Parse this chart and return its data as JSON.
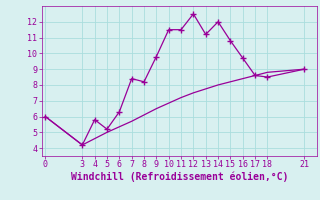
{
  "line1_x": [
    0,
    3,
    4,
    5,
    6,
    7,
    8,
    9,
    10,
    11,
    12,
    13,
    14,
    15,
    16,
    17,
    18,
    21
  ],
  "line1_y": [
    6.0,
    4.2,
    5.8,
    5.2,
    6.3,
    8.4,
    8.2,
    9.8,
    11.5,
    11.5,
    12.5,
    11.2,
    12.0,
    10.8,
    9.7,
    8.6,
    8.5,
    9.0
  ],
  "line2_x": [
    0,
    3,
    4,
    5,
    6,
    7,
    8,
    9,
    10,
    11,
    12,
    13,
    14,
    15,
    16,
    17,
    18,
    21
  ],
  "line2_y": [
    6.0,
    4.2,
    4.6,
    5.0,
    5.35,
    5.7,
    6.1,
    6.5,
    6.85,
    7.2,
    7.5,
    7.75,
    8.0,
    8.2,
    8.4,
    8.6,
    8.8,
    9.0
  ],
  "line_color": "#990099",
  "bg_color": "#d8f0f0",
  "grid_color": "#aadddd",
  "xlabel": "Windchill (Refroidissement éolien,°C)",
  "xlabel_color": "#990099",
  "ylabel_ticks": [
    4,
    5,
    6,
    7,
    8,
    9,
    10,
    11,
    12
  ],
  "xtick_labels": [
    "0",
    "3",
    "4",
    "5",
    "6",
    "7",
    "8",
    "9",
    "10",
    "11",
    "12",
    "13",
    "14",
    "15",
    "16",
    "17",
    "18",
    "21"
  ],
  "xtick_positions": [
    0,
    3,
    4,
    5,
    6,
    7,
    8,
    9,
    10,
    11,
    12,
    13,
    14,
    15,
    16,
    17,
    18,
    21
  ],
  "xlim": [
    -0.3,
    22
  ],
  "ylim": [
    3.5,
    13.0
  ],
  "marker": "+",
  "markersize": 4,
  "linewidth": 0.9,
  "tick_color": "#990099",
  "tick_fontsize": 6,
  "xlabel_fontsize": 7
}
